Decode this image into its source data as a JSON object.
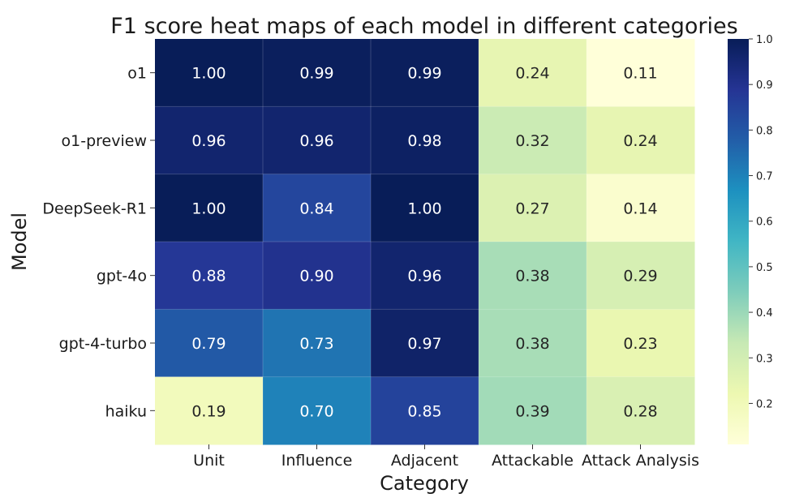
{
  "chart_data": {
    "type": "heatmap",
    "title": "F1 score heat maps of each model in different categories",
    "xlabel": "Category",
    "ylabel": "Model",
    "rows": [
      "o1",
      "o1-preview",
      "DeepSeek-R1",
      "gpt-4o",
      "gpt-4-turbo",
      "haiku"
    ],
    "columns": [
      "Unit",
      "Influence",
      "Adjacent",
      "Attackable",
      "Attack Analysis"
    ],
    "values": [
      [
        1.0,
        0.99,
        0.99,
        0.24,
        0.11
      ],
      [
        0.96,
        0.96,
        0.98,
        0.32,
        0.24
      ],
      [
        1.0,
        0.84,
        1.0,
        0.27,
        0.14
      ],
      [
        0.88,
        0.9,
        0.96,
        0.38,
        0.29
      ],
      [
        0.79,
        0.73,
        0.97,
        0.38,
        0.23
      ],
      [
        0.19,
        0.7,
        0.85,
        0.39,
        0.28
      ]
    ],
    "colorbar": {
      "range": [
        0.11,
        1.0
      ],
      "ticks": [
        0.2,
        0.3,
        0.4,
        0.5,
        0.6,
        0.7,
        0.8,
        0.9,
        1.0
      ],
      "tick_labels": [
        "0.2",
        "0.3",
        "0.4",
        "0.5",
        "0.6",
        "0.7",
        "0.8",
        "0.9",
        "1.0"
      ],
      "colormap": "YlGnBu",
      "colors": [
        "#ffffd9",
        "#edf8b1",
        "#c7e9b4",
        "#7fcdbb",
        "#41b6c4",
        "#1d91c0",
        "#225ea8",
        "#253494",
        "#081d58"
      ]
    },
    "grid": false
  }
}
